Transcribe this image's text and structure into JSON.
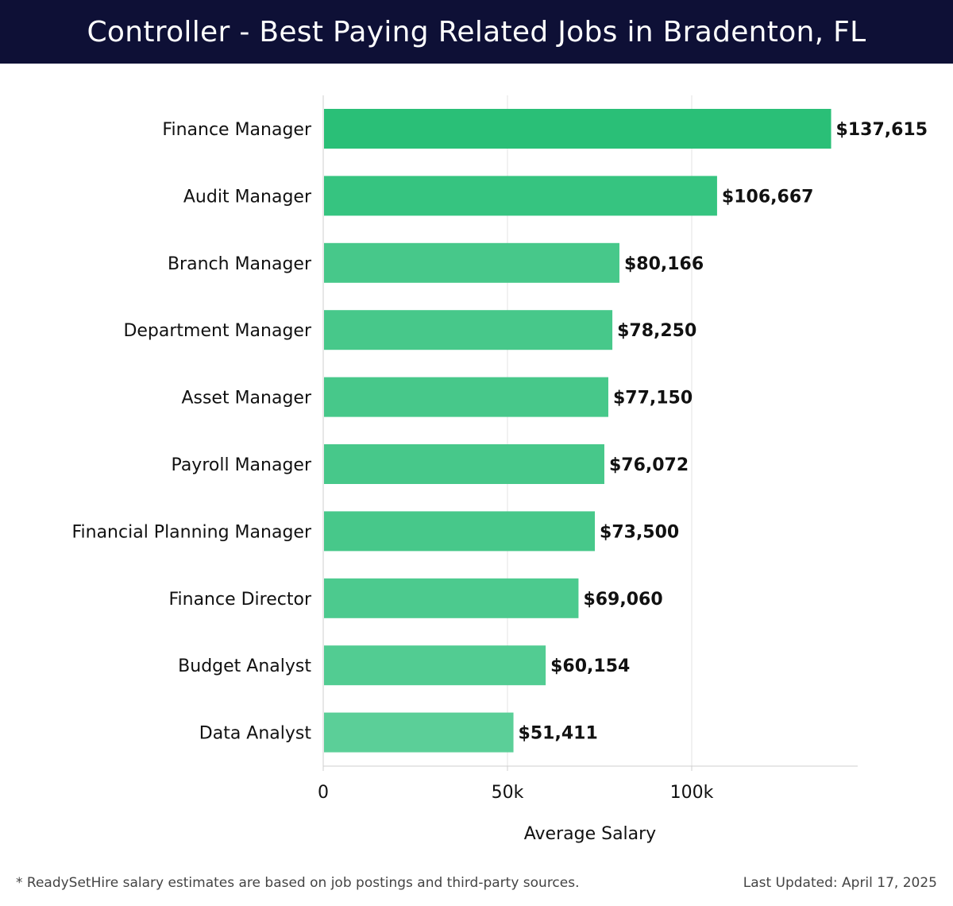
{
  "header": {
    "title": "Controller - Best Paying Related Jobs in Bradenton, FL"
  },
  "chart_data": {
    "type": "bar",
    "orientation": "horizontal",
    "title": "Controller - Best Paying Related Jobs in Bradenton, FL",
    "xlabel": "Average Salary",
    "ylabel": "",
    "xlim": [
      0,
      145000
    ],
    "x_ticks": [
      0,
      50000,
      100000
    ],
    "x_tick_labels": [
      "0",
      "50k",
      "100k"
    ],
    "grid": true,
    "categories": [
      "Finance Manager",
      "Audit Manager",
      "Branch Manager",
      "Department Manager",
      "Asset Manager",
      "Payroll Manager",
      "Financial Planning Manager",
      "Finance Director",
      "Budget Analyst",
      "Data Analyst"
    ],
    "values": [
      137615,
      106667,
      80166,
      78250,
      77150,
      76072,
      73500,
      69060,
      60154,
      51411
    ],
    "value_labels": [
      "$137,615",
      "$106,667",
      "$80,166",
      "$78,250",
      "$77,150",
      "$76,072",
      "$73,500",
      "$69,060",
      "$60,154",
      "$51,411"
    ],
    "bar_colors": [
      "#2abf77",
      "#36c480",
      "#47c88a",
      "#47c88a",
      "#47c88a",
      "#47c88a",
      "#47c88a",
      "#4cca8e",
      "#52cc92",
      "#5bcf98"
    ]
  },
  "footer": {
    "note": "* ReadySetHire salary estimates are based on job postings and third-party sources.",
    "updated": "Last Updated: April 17, 2025"
  }
}
